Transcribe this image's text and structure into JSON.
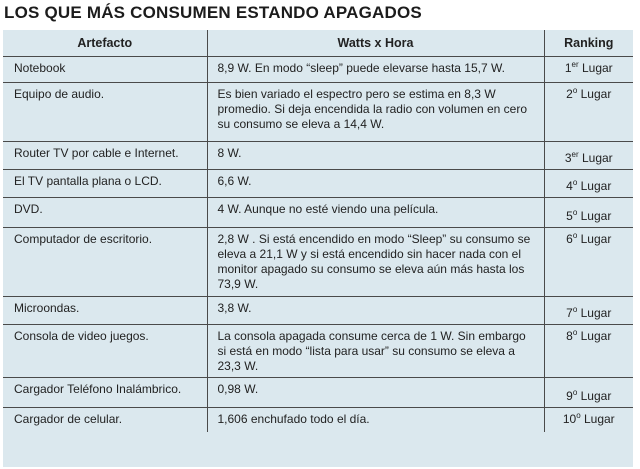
{
  "title": "LOS QUE MÁS CONSUMEN ESTANDO APAGADOS",
  "headers": {
    "artefacto": "Artefacto",
    "watts": "Watts x Hora",
    "ranking": "Ranking"
  },
  "colors": {
    "table_background": "#dbe8ee",
    "rule_color": "#4a4a4a"
  },
  "rows": [
    {
      "artefacto": "Notebook",
      "watts": "8,9 W. En modo “sleep” puede elevarse hasta 15,7 W.",
      "rank_num": "1",
      "rank_sup": "er",
      "rank_word": " Lugar"
    },
    {
      "artefacto": "Equipo de audio.",
      "watts": "Es bien variado el espectro pero se estima en 8,3 W promedio. Si deja encendida la radio con volumen en cero su consumo se eleva a 14,4 W.",
      "rank_num": "2",
      "rank_sup": "o",
      "rank_word": " Lugar"
    },
    {
      "artefacto": "Router TV por cable e Internet.",
      "watts": "8 W.",
      "rank_num": "3",
      "rank_sup": "er",
      "rank_word": " Lugar"
    },
    {
      "artefacto": "El TV pantalla plana o LCD.",
      "watts": "6,6 W.",
      "rank_num": "4",
      "rank_sup": "o",
      "rank_word": " Lugar"
    },
    {
      "artefacto": "DVD.",
      "watts": "4 W. Aunque no esté viendo una película.",
      "rank_num": "5",
      "rank_sup": "o",
      "rank_word": " Lugar"
    },
    {
      "artefacto": "Computador de escritorio.",
      "watts": "2,8 W . Si está encendido en modo “Sleep” su consumo se eleva a 21,1 W y si está encendido sin hacer nada con el monitor apagado su consumo se eleva aún más hasta los 73,9 W.",
      "rank_num": "6",
      "rank_sup": "o",
      "rank_word": " Lugar"
    },
    {
      "artefacto": "Microondas.",
      "watts": "3,8 W.",
      "rank_num": "7",
      "rank_sup": "o",
      "rank_word": " Lugar"
    },
    {
      "artefacto": "Consola de video juegos.",
      "watts": "La consola apagada consume cerca de 1 W. Sin embargo si está en modo “lista para usar” su consumo se eleva a 23,3 W.",
      "rank_num": "8",
      "rank_sup": "o",
      "rank_word": " Lugar"
    },
    {
      "artefacto": "Cargador Teléfono Inalámbrico.",
      "watts": "0,98 W.",
      "rank_num": "9",
      "rank_sup": "o",
      "rank_word": " Lugar"
    },
    {
      "artefacto": "Cargador de celular.",
      "watts": "1,606 enchufado todo el día.",
      "rank_num": "10",
      "rank_sup": "o",
      "rank_word": " Lugar"
    }
  ]
}
